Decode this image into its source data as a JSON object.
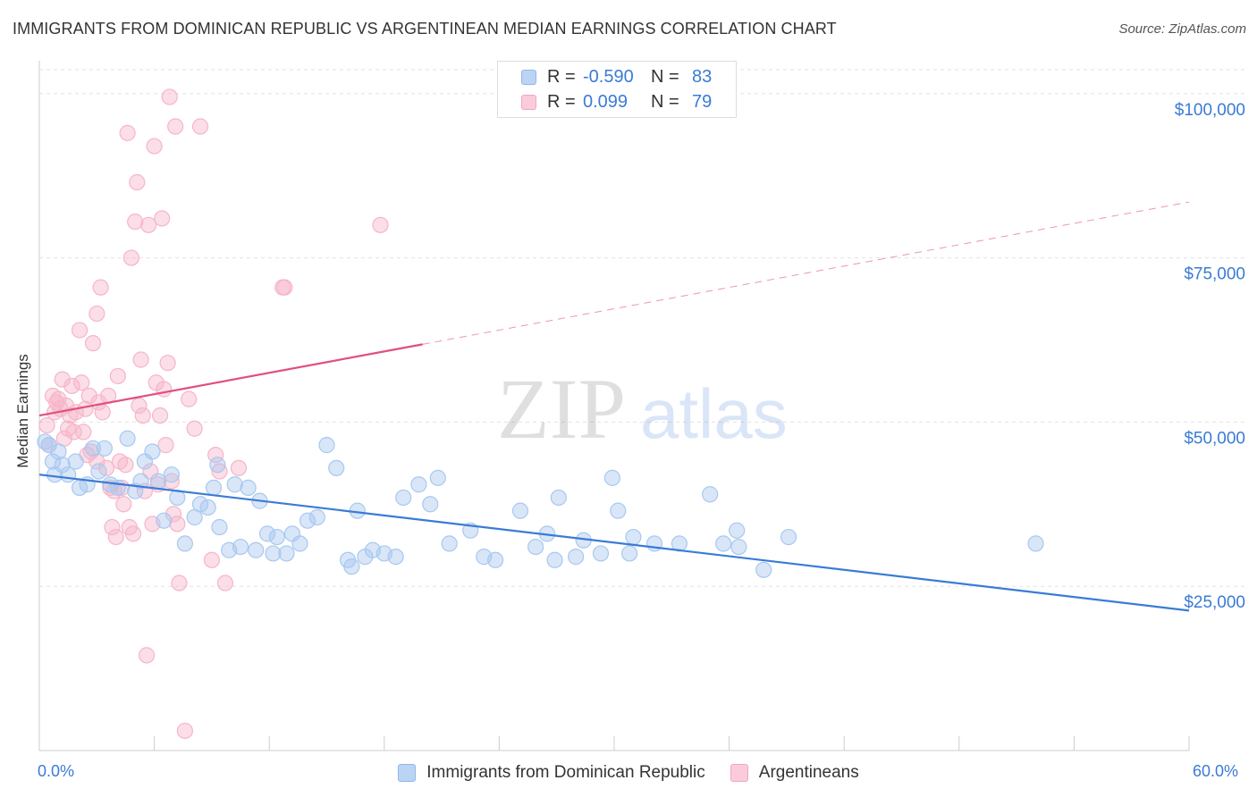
{
  "header": {
    "title": "IMMIGRANTS FROM DOMINICAN REPUBLIC VS ARGENTINEAN MEDIAN EARNINGS CORRELATION CHART",
    "source": "Source: ZipAtlas.com"
  },
  "legend": {
    "rows": [
      {
        "r_label": "R =",
        "r_value": "-0.590",
        "n_label": "N =",
        "n_value": "83",
        "color": "#8fb6ea"
      },
      {
        "r_label": "R =",
        "r_value": "0.099",
        "n_label": "N =",
        "n_value": "79",
        "color": "#f4a5bf"
      }
    ]
  },
  "watermark": {
    "part1": "ZIP",
    "part2": "atlas"
  },
  "chart_data": {
    "type": "scatter",
    "ylabel": "Median Earnings",
    "xlim": [
      0,
      60
    ],
    "ylim": [
      0,
      105000
    ],
    "x_tick_labels": {
      "left": "0.0%",
      "right": "60.0%"
    },
    "y_ticks": [
      {
        "value": 25000,
        "label": "$25,000"
      },
      {
        "value": 50000,
        "label": "$50,000"
      },
      {
        "value": 75000,
        "label": "$75,000"
      },
      {
        "value": 100000,
        "label": "$100,000"
      }
    ],
    "x_minor_ticks": [
      6,
      12,
      18,
      24,
      30,
      36,
      42,
      48,
      54,
      60
    ],
    "grid": true,
    "series": [
      {
        "name": "Immigrants from Dominican Republic",
        "color": "#3a7bd5",
        "fill": "#a8c8f0",
        "trend": {
          "x0": 0,
          "y0": 42000,
          "x1": 60,
          "y1": 21300,
          "dashed_from": null
        },
        "points": [
          [
            0.3,
            47000
          ],
          [
            0.5,
            46500
          ],
          [
            0.7,
            44000
          ],
          [
            0.8,
            42000
          ],
          [
            1.0,
            45500
          ],
          [
            1.2,
            43500
          ],
          [
            1.5,
            42000
          ],
          [
            1.9,
            44000
          ],
          [
            2.1,
            40000
          ],
          [
            2.5,
            40500
          ],
          [
            2.8,
            46000
          ],
          [
            3.1,
            42500
          ],
          [
            3.4,
            46000
          ],
          [
            3.7,
            40500
          ],
          [
            4.1,
            40000
          ],
          [
            4.6,
            47500
          ],
          [
            5.0,
            39500
          ],
          [
            5.3,
            41000
          ],
          [
            5.5,
            44000
          ],
          [
            5.9,
            45500
          ],
          [
            6.2,
            41000
          ],
          [
            6.5,
            35000
          ],
          [
            6.9,
            42000
          ],
          [
            7.2,
            38500
          ],
          [
            7.6,
            31500
          ],
          [
            8.1,
            35500
          ],
          [
            8.4,
            37500
          ],
          [
            8.8,
            37000
          ],
          [
            9.1,
            40000
          ],
          [
            9.3,
            43500
          ],
          [
            9.4,
            34000
          ],
          [
            9.9,
            30500
          ],
          [
            10.2,
            40500
          ],
          [
            10.5,
            31000
          ],
          [
            10.9,
            40000
          ],
          [
            11.3,
            30500
          ],
          [
            11.5,
            38000
          ],
          [
            11.9,
            33000
          ],
          [
            12.2,
            30000
          ],
          [
            12.4,
            32500
          ],
          [
            12.9,
            30000
          ],
          [
            13.2,
            33000
          ],
          [
            13.6,
            31500
          ],
          [
            14.0,
            35000
          ],
          [
            14.5,
            35500
          ],
          [
            15.0,
            46500
          ],
          [
            15.5,
            43000
          ],
          [
            16.1,
            29000
          ],
          [
            16.3,
            28000
          ],
          [
            16.6,
            36500
          ],
          [
            17.0,
            29500
          ],
          [
            17.4,
            30500
          ],
          [
            18.0,
            30000
          ],
          [
            18.6,
            29500
          ],
          [
            19.0,
            38500
          ],
          [
            19.8,
            40500
          ],
          [
            20.4,
            37500
          ],
          [
            20.8,
            41500
          ],
          [
            21.4,
            31500
          ],
          [
            22.5,
            33500
          ],
          [
            23.2,
            29500
          ],
          [
            23.8,
            29000
          ],
          [
            25.1,
            36500
          ],
          [
            25.9,
            31000
          ],
          [
            26.5,
            33000
          ],
          [
            26.9,
            29000
          ],
          [
            27.1,
            38500
          ],
          [
            28.0,
            29500
          ],
          [
            28.4,
            32000
          ],
          [
            29.3,
            30000
          ],
          [
            29.9,
            41500
          ],
          [
            30.2,
            36500
          ],
          [
            30.8,
            30000
          ],
          [
            31.0,
            32500
          ],
          [
            32.1,
            31500
          ],
          [
            33.4,
            31500
          ],
          [
            35.0,
            39000
          ],
          [
            35.7,
            31500
          ],
          [
            36.4,
            33500
          ],
          [
            36.5,
            31000
          ],
          [
            37.8,
            27500
          ],
          [
            39.1,
            32500
          ],
          [
            52.0,
            31500
          ]
        ]
      },
      {
        "name": "Argentineans",
        "color": "#e0507f",
        "fill": "#f6b5c9",
        "trend": {
          "x0": 0,
          "y0": 51000,
          "x1": 60,
          "y1": 83500,
          "dashed_from": 20
        },
        "points": [
          [
            0.4,
            49500
          ],
          [
            0.5,
            46500
          ],
          [
            0.7,
            54000
          ],
          [
            0.8,
            51500
          ],
          [
            1.0,
            53500
          ],
          [
            1.1,
            52000
          ],
          [
            1.2,
            56500
          ],
          [
            1.3,
            47500
          ],
          [
            1.4,
            52500
          ],
          [
            1.6,
            51000
          ],
          [
            1.7,
            55500
          ],
          [
            1.8,
            48500
          ],
          [
            1.9,
            51500
          ],
          [
            2.1,
            64000
          ],
          [
            2.2,
            56000
          ],
          [
            2.3,
            48500
          ],
          [
            2.4,
            52000
          ],
          [
            2.5,
            45000
          ],
          [
            2.6,
            54000
          ],
          [
            2.7,
            45500
          ],
          [
            2.8,
            62000
          ],
          [
            3.0,
            66500
          ],
          [
            3.0,
            44000
          ],
          [
            3.1,
            53000
          ],
          [
            3.2,
            70500
          ],
          [
            3.3,
            51500
          ],
          [
            3.5,
            43000
          ],
          [
            3.6,
            54000
          ],
          [
            3.7,
            40000
          ],
          [
            3.8,
            34000
          ],
          [
            3.9,
            39500
          ],
          [
            4.0,
            32500
          ],
          [
            4.1,
            57000
          ],
          [
            4.2,
            44000
          ],
          [
            4.3,
            40000
          ],
          [
            4.4,
            37500
          ],
          [
            4.5,
            43500
          ],
          [
            4.6,
            94000
          ],
          [
            4.7,
            34000
          ],
          [
            4.8,
            75000
          ],
          [
            4.9,
            33000
          ],
          [
            5.0,
            80500
          ],
          [
            5.1,
            86500
          ],
          [
            5.2,
            52500
          ],
          [
            5.3,
            59500
          ],
          [
            5.4,
            51000
          ],
          [
            5.5,
            39500
          ],
          [
            5.6,
            14500
          ],
          [
            5.7,
            80000
          ],
          [
            5.8,
            42500
          ],
          [
            5.9,
            34500
          ],
          [
            6.0,
            92000
          ],
          [
            6.1,
            56000
          ],
          [
            6.2,
            40500
          ],
          [
            6.3,
            51000
          ],
          [
            6.4,
            81000
          ],
          [
            6.5,
            55000
          ],
          [
            6.6,
            46500
          ],
          [
            6.7,
            59000
          ],
          [
            6.8,
            99500
          ],
          [
            6.9,
            41000
          ],
          [
            7.0,
            36000
          ],
          [
            7.1,
            95000
          ],
          [
            7.2,
            34500
          ],
          [
            7.3,
            25500
          ],
          [
            7.6,
            3000
          ],
          [
            7.8,
            53500
          ],
          [
            8.1,
            49000
          ],
          [
            8.4,
            95000
          ],
          [
            9.0,
            29000
          ],
          [
            9.2,
            45000
          ],
          [
            9.4,
            42500
          ],
          [
            9.7,
            25500
          ],
          [
            10.4,
            43000
          ],
          [
            12.7,
            70500
          ],
          [
            12.8,
            70500
          ],
          [
            17.8,
            80000
          ],
          [
            0.9,
            53000
          ],
          [
            1.5,
            49000
          ]
        ]
      }
    ]
  }
}
